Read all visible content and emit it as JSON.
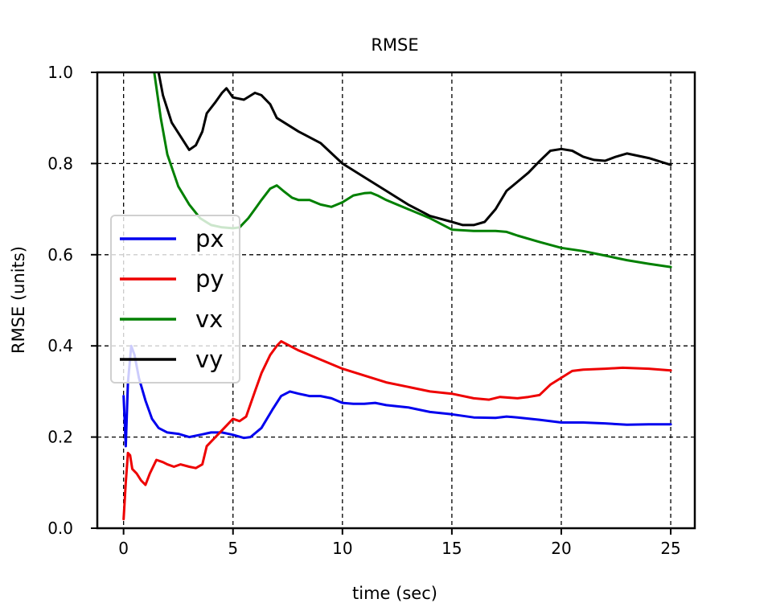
{
  "chart_data": {
    "type": "line",
    "title": "RMSE",
    "xlabel": "time (sec)",
    "ylabel": "RMSE (units)",
    "xlim": [
      -1.2,
      26.1
    ],
    "ylim": [
      0.0,
      1.0
    ],
    "xticks": [
      0,
      5,
      10,
      15,
      20,
      25
    ],
    "yticks": [
      0.0,
      0.2,
      0.4,
      0.6,
      0.8,
      1.0
    ],
    "xtick_labels": [
      "0",
      "5",
      "10",
      "15",
      "20",
      "25"
    ],
    "ytick_labels": [
      "0.0",
      "0.2",
      "0.4",
      "0.6",
      "0.8",
      "1.0"
    ],
    "grid": true,
    "legend_position": "center-left",
    "series": [
      {
        "name": "px",
        "color": "#0000ee",
        "points": [
          [
            0,
            0.29
          ],
          [
            0.1,
            0.18
          ],
          [
            0.2,
            0.32
          ],
          [
            0.35,
            0.4
          ],
          [
            0.5,
            0.38
          ],
          [
            0.7,
            0.33
          ],
          [
            1.0,
            0.28
          ],
          [
            1.3,
            0.24
          ],
          [
            1.6,
            0.22
          ],
          [
            2.0,
            0.21
          ],
          [
            2.5,
            0.207
          ],
          [
            3.0,
            0.2
          ],
          [
            3.5,
            0.205
          ],
          [
            4.0,
            0.21
          ],
          [
            4.5,
            0.21
          ],
          [
            5.0,
            0.205
          ],
          [
            5.5,
            0.198
          ],
          [
            5.8,
            0.2
          ],
          [
            6.3,
            0.22
          ],
          [
            6.8,
            0.26
          ],
          [
            7.2,
            0.29
          ],
          [
            7.6,
            0.3
          ],
          [
            8.0,
            0.295
          ],
          [
            8.5,
            0.29
          ],
          [
            9.0,
            0.29
          ],
          [
            9.5,
            0.285
          ],
          [
            10.0,
            0.275
          ],
          [
            10.5,
            0.273
          ],
          [
            11.0,
            0.273
          ],
          [
            11.5,
            0.275
          ],
          [
            12.0,
            0.27
          ],
          [
            13.0,
            0.265
          ],
          [
            14.0,
            0.255
          ],
          [
            15.0,
            0.25
          ],
          [
            16.0,
            0.243
          ],
          [
            17.0,
            0.242
          ],
          [
            17.5,
            0.245
          ],
          [
            18.0,
            0.243
          ],
          [
            19.0,
            0.238
          ],
          [
            20.0,
            0.232
          ],
          [
            21.0,
            0.232
          ],
          [
            22.0,
            0.23
          ],
          [
            23.0,
            0.227
          ],
          [
            24.0,
            0.228
          ],
          [
            25.0,
            0.228
          ]
        ]
      },
      {
        "name": "py",
        "color": "#ee0000",
        "points": [
          [
            0,
            0.02
          ],
          [
            0.1,
            0.1
          ],
          [
            0.2,
            0.165
          ],
          [
            0.3,
            0.16
          ],
          [
            0.4,
            0.13
          ],
          [
            0.6,
            0.12
          ],
          [
            0.8,
            0.105
          ],
          [
            1.0,
            0.095
          ],
          [
            1.2,
            0.12
          ],
          [
            1.5,
            0.15
          ],
          [
            1.8,
            0.145
          ],
          [
            2.0,
            0.14
          ],
          [
            2.3,
            0.135
          ],
          [
            2.6,
            0.14
          ],
          [
            3.0,
            0.135
          ],
          [
            3.3,
            0.132
          ],
          [
            3.6,
            0.14
          ],
          [
            3.8,
            0.18
          ],
          [
            4.2,
            0.2
          ],
          [
            4.7,
            0.225
          ],
          [
            5.0,
            0.24
          ],
          [
            5.3,
            0.235
          ],
          [
            5.6,
            0.245
          ],
          [
            6.0,
            0.3
          ],
          [
            6.3,
            0.34
          ],
          [
            6.7,
            0.38
          ],
          [
            7.0,
            0.4
          ],
          [
            7.2,
            0.41
          ],
          [
            7.6,
            0.4
          ],
          [
            8.0,
            0.39
          ],
          [
            9.0,
            0.37
          ],
          [
            10.0,
            0.35
          ],
          [
            11.0,
            0.335
          ],
          [
            12.0,
            0.32
          ],
          [
            13.0,
            0.31
          ],
          [
            14.0,
            0.3
          ],
          [
            15.0,
            0.295
          ],
          [
            16.0,
            0.285
          ],
          [
            16.7,
            0.282
          ],
          [
            17.2,
            0.288
          ],
          [
            18.0,
            0.285
          ],
          [
            18.5,
            0.288
          ],
          [
            19.0,
            0.292
          ],
          [
            19.5,
            0.315
          ],
          [
            20.0,
            0.33
          ],
          [
            20.5,
            0.345
          ],
          [
            21.0,
            0.348
          ],
          [
            22.0,
            0.35
          ],
          [
            22.8,
            0.352
          ],
          [
            24.0,
            0.35
          ],
          [
            25.0,
            0.346
          ]
        ]
      },
      {
        "name": "vx",
        "color": "#008000",
        "points": [
          [
            1.4,
            1.0
          ],
          [
            1.7,
            0.9
          ],
          [
            2.0,
            0.82
          ],
          [
            2.5,
            0.75
          ],
          [
            3.0,
            0.71
          ],
          [
            3.5,
            0.68
          ],
          [
            4.0,
            0.665
          ],
          [
            4.5,
            0.66
          ],
          [
            5.0,
            0.658
          ],
          [
            5.3,
            0.66
          ],
          [
            5.7,
            0.68
          ],
          [
            6.0,
            0.7
          ],
          [
            6.3,
            0.72
          ],
          [
            6.7,
            0.745
          ],
          [
            7.0,
            0.752
          ],
          [
            7.3,
            0.74
          ],
          [
            7.7,
            0.725
          ],
          [
            8.0,
            0.72
          ],
          [
            8.5,
            0.72
          ],
          [
            9.0,
            0.71
          ],
          [
            9.5,
            0.705
          ],
          [
            10.0,
            0.715
          ],
          [
            10.5,
            0.73
          ],
          [
            11.0,
            0.735
          ],
          [
            11.3,
            0.736
          ],
          [
            11.6,
            0.73
          ],
          [
            12.0,
            0.72
          ],
          [
            13.0,
            0.7
          ],
          [
            14.0,
            0.68
          ],
          [
            15.0,
            0.655
          ],
          [
            16.0,
            0.652
          ],
          [
            17.0,
            0.652
          ],
          [
            17.5,
            0.65
          ],
          [
            18.0,
            0.642
          ],
          [
            19.0,
            0.628
          ],
          [
            20.0,
            0.615
          ],
          [
            21.0,
            0.608
          ],
          [
            22.0,
            0.598
          ],
          [
            23.0,
            0.588
          ],
          [
            24.0,
            0.58
          ],
          [
            25.0,
            0.573
          ]
        ]
      },
      {
        "name": "vy",
        "color": "#000000",
        "points": [
          [
            1.6,
            1.0
          ],
          [
            1.8,
            0.95
          ],
          [
            2.2,
            0.89
          ],
          [
            2.6,
            0.86
          ],
          [
            3.0,
            0.83
          ],
          [
            3.3,
            0.84
          ],
          [
            3.6,
            0.87
          ],
          [
            3.8,
            0.91
          ],
          [
            4.2,
            0.935
          ],
          [
            4.5,
            0.955
          ],
          [
            4.7,
            0.965
          ],
          [
            5.0,
            0.945
          ],
          [
            5.5,
            0.94
          ],
          [
            6.0,
            0.955
          ],
          [
            6.3,
            0.95
          ],
          [
            6.7,
            0.93
          ],
          [
            7.0,
            0.9
          ],
          [
            8.0,
            0.87
          ],
          [
            9.0,
            0.845
          ],
          [
            10.0,
            0.8
          ],
          [
            11.0,
            0.77
          ],
          [
            12.0,
            0.74
          ],
          [
            13.0,
            0.71
          ],
          [
            14.0,
            0.685
          ],
          [
            15.0,
            0.672
          ],
          [
            15.5,
            0.665
          ],
          [
            16.0,
            0.665
          ],
          [
            16.5,
            0.672
          ],
          [
            17.0,
            0.7
          ],
          [
            17.5,
            0.74
          ],
          [
            18.0,
            0.76
          ],
          [
            18.5,
            0.78
          ],
          [
            19.0,
            0.805
          ],
          [
            19.5,
            0.828
          ],
          [
            20.0,
            0.832
          ],
          [
            20.5,
            0.828
          ],
          [
            21.0,
            0.815
          ],
          [
            21.5,
            0.808
          ],
          [
            22.0,
            0.806
          ],
          [
            22.5,
            0.815
          ],
          [
            23.0,
            0.822
          ],
          [
            24.0,
            0.812
          ],
          [
            25.0,
            0.797
          ]
        ]
      }
    ]
  }
}
